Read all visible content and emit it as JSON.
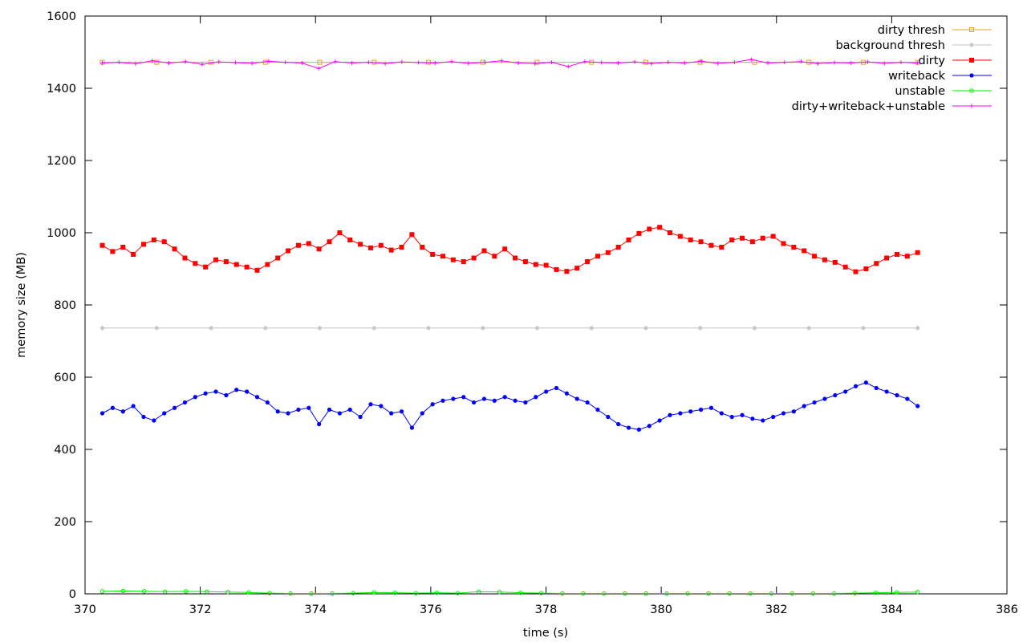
{
  "chart_data": {
    "type": "line",
    "title": "",
    "xlabel": "time (s)",
    "ylabel": "memory size (MB)",
    "xlim": [
      370,
      386
    ],
    "ylim": [
      0,
      1600
    ],
    "x_ticks": [
      370,
      372,
      374,
      376,
      378,
      380,
      382,
      384,
      386
    ],
    "y_ticks": [
      0,
      200,
      400,
      600,
      800,
      1000,
      1200,
      1400,
      1600
    ],
    "grid": false,
    "legend_position": "top-right",
    "x_start": 370.3,
    "x_end": 384.45,
    "series": [
      {
        "name": "dirty thresh",
        "color": "#e6a020",
        "marker": "open-square",
        "values": [
          1472,
          1472,
          1472,
          1472,
          1472,
          1472,
          1472,
          1472,
          1472,
          1472,
          1472,
          1472,
          1472,
          1472,
          1472,
          1472
        ]
      },
      {
        "name": "background thresh",
        "color": "#c0c0c0",
        "marker": "star",
        "values": [
          736,
          736,
          736,
          736,
          736,
          736,
          736,
          736,
          736,
          736,
          736,
          736,
          736,
          736,
          736,
          736
        ]
      },
      {
        "name": "dirty",
        "color": "#ff0000",
        "marker": "filled-square",
        "values": [
          965,
          948,
          960,
          940,
          968,
          980,
          975,
          955,
          930,
          915,
          905,
          925,
          920,
          912,
          905,
          896,
          912,
          930,
          950,
          965,
          970,
          955,
          975,
          1000,
          980,
          968,
          958,
          965,
          952,
          960,
          995,
          960,
          940,
          935,
          925,
          920,
          930,
          950,
          935,
          955,
          930,
          920,
          912,
          910,
          898,
          893,
          902,
          920,
          935,
          945,
          960,
          980,
          998,
          1010,
          1015,
          1000,
          990,
          980,
          975,
          965,
          960,
          980,
          985,
          975,
          985,
          990,
          970,
          960,
          950,
          935,
          925,
          918,
          905,
          892,
          900,
          915,
          930,
          940,
          935,
          945
        ]
      },
      {
        "name": "writeback",
        "color": "#0000ff",
        "marker": "filled-circle",
        "values": [
          500,
          515,
          505,
          520,
          490,
          480,
          500,
          515,
          530,
          545,
          555,
          560,
          550,
          565,
          560,
          545,
          530,
          505,
          500,
          510,
          515,
          470,
          510,
          500,
          510,
          490,
          525,
          520,
          500,
          505,
          460,
          500,
          525,
          535,
          540,
          545,
          530,
          540,
          535,
          545,
          535,
          530,
          545,
          560,
          570,
          555,
          540,
          530,
          510,
          490,
          470,
          460,
          455,
          465,
          480,
          495,
          500,
          505,
          510,
          515,
          500,
          490,
          495,
          485,
          480,
          490,
          500,
          505,
          520,
          530,
          540,
          550,
          560,
          575,
          585,
          570,
          560,
          550,
          540,
          520
        ]
      },
      {
        "name": "unstable",
        "color": "#00ee00",
        "marker": "open-circle",
        "values": [
          7,
          8,
          7,
          6,
          7,
          6,
          5,
          4,
          2,
          1,
          1,
          1,
          2,
          4,
          3,
          2,
          3,
          2,
          6,
          5,
          3,
          2,
          1,
          1,
          1,
          1,
          1,
          1,
          1,
          1,
          1,
          1,
          1,
          1,
          1,
          1,
          2,
          3,
          4,
          5
        ]
      },
      {
        "name": "dirty+writeback+unstable",
        "color": "#ff00ff",
        "marker": "plus",
        "values": [
          1470,
          1472,
          1468,
          1476,
          1470,
          1474,
          1466,
          1473,
          1471,
          1469,
          1475,
          1472,
          1470,
          1455,
          1474,
          1470,
          1472,
          1468,
          1473,
          1471,
          1470,
          1474,
          1469,
          1472,
          1476,
          1470,
          1468,
          1472,
          1460,
          1474,
          1471,
          1470,
          1473,
          1468,
          1472,
          1470,
          1475,
          1469,
          1472,
          1480,
          1470,
          1472,
          1474,
          1468,
          1471,
          1470,
          1473,
          1469,
          1472,
          1470
        ]
      }
    ]
  }
}
